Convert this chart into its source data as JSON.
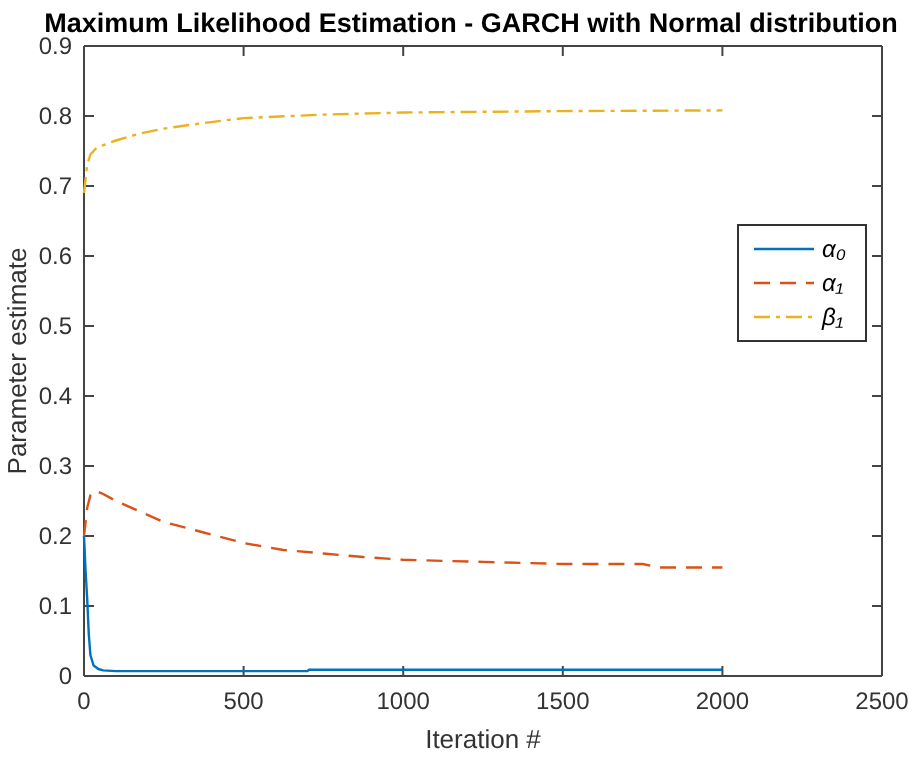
{
  "chart_data": {
    "type": "line",
    "title": "Maximum Likelihood Estimation - GARCH with Normal distribution",
    "xlabel": "Iteration #",
    "ylabel": "Parameter estimate",
    "xlim": [
      0,
      2500
    ],
    "xticks": [
      0,
      500,
      1000,
      1500,
      2000,
      2500
    ],
    "ylim": [
      0,
      0.9
    ],
    "yticks": [
      0,
      0.1,
      0.2,
      0.3,
      0.4,
      0.5,
      0.6,
      0.7,
      0.8,
      0.9
    ],
    "grid": false,
    "legend": "right",
    "series": [
      {
        "name": "α₀",
        "color": "#0072bd",
        "line_style": "solid",
        "x": [
          0,
          5,
          10,
          15,
          20,
          30,
          45,
          60,
          100,
          300,
          700,
          705,
          1500,
          2000
        ],
        "values": [
          0.2,
          0.15,
          0.11,
          0.06,
          0.03,
          0.015,
          0.01,
          0.008,
          0.007,
          0.007,
          0.007,
          0.009,
          0.009,
          0.009
        ]
      },
      {
        "name": "α₁",
        "color": "#d95319",
        "line_style": "dashed",
        "x": [
          0,
          10,
          20,
          35,
          60,
          100,
          175,
          250,
          375,
          500,
          625,
          750,
          875,
          1000,
          1250,
          1500,
          1750,
          1800,
          2000
        ],
        "values": [
          0.2,
          0.24,
          0.258,
          0.265,
          0.26,
          0.25,
          0.235,
          0.22,
          0.205,
          0.19,
          0.18,
          0.175,
          0.17,
          0.166,
          0.163,
          0.16,
          0.16,
          0.155,
          0.155
        ]
      },
      {
        "name": "β₁",
        "color": "#edb120",
        "line_style": "dashdot",
        "x": [
          0,
          10,
          20,
          40,
          70,
          100,
          175,
          250,
          375,
          500,
          750,
          1000,
          1500,
          2000
        ],
        "values": [
          0.69,
          0.73,
          0.745,
          0.755,
          0.76,
          0.765,
          0.775,
          0.782,
          0.79,
          0.797,
          0.802,
          0.805,
          0.807,
          0.808
        ]
      }
    ]
  }
}
